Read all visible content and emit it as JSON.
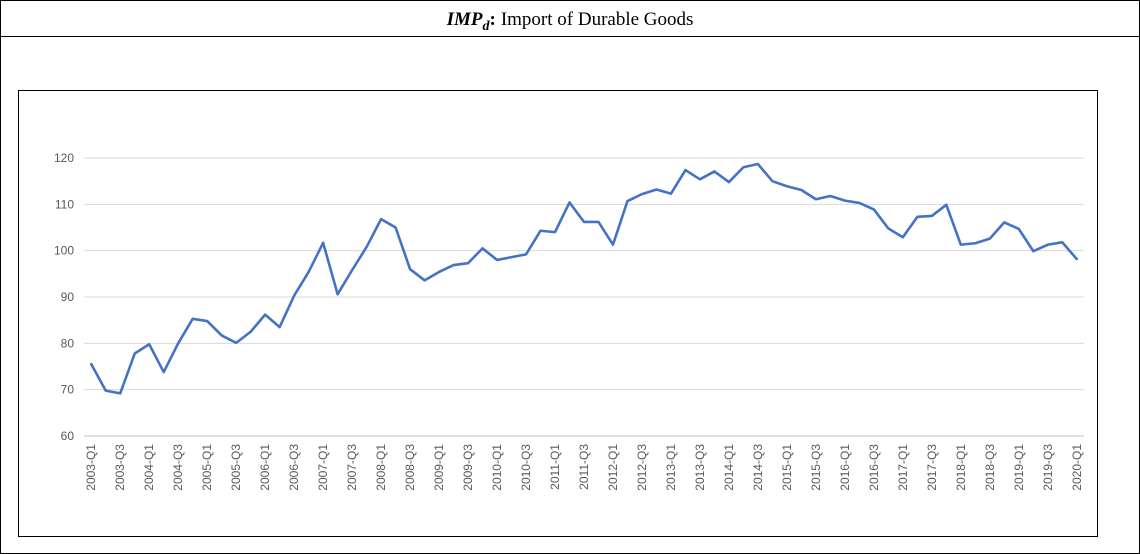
{
  "chart_data": {
    "type": "line",
    "title": {
      "symbol": "IMP",
      "subscript": "d",
      "separator": ":",
      "text": "Import of Durable Goods"
    },
    "categories": [
      "2003-Q1",
      null,
      "2003-Q3",
      null,
      "2004-Q1",
      null,
      "2004-Q3",
      null,
      "2005-Q1",
      null,
      "2005-Q3",
      null,
      "2006-Q1",
      null,
      "2006-Q3",
      null,
      "2007-Q1",
      null,
      "2007-Q3",
      null,
      "2008-Q1",
      null,
      "2008-Q3",
      null,
      "2009-Q1",
      null,
      "2009-Q3",
      null,
      "2010-Q1",
      null,
      "2010-Q3",
      null,
      "2011-Q1",
      null,
      "2011-Q3",
      null,
      "2012-Q1",
      null,
      "2012-Q3",
      null,
      "2013-Q1",
      null,
      "2013-Q3",
      null,
      "2014-Q1",
      null,
      "2014-Q3",
      null,
      "2015-Q1",
      null,
      "2015-Q3",
      null,
      "2016-Q1",
      null,
      "2016-Q3",
      null,
      "2017-Q1",
      null,
      "2017-Q3",
      null,
      "2018-Q1",
      null,
      "2018-Q3",
      null,
      "2019-Q1",
      null,
      "2019-Q3",
      null,
      "2020-Q1"
    ],
    "values": [
      75.5,
      69.8,
      69.2,
      77.8,
      79.8,
      73.8,
      80,
      85.3,
      84.8,
      81.7,
      80.1,
      82.5,
      86.2,
      83.5,
      90.3,
      95.4,
      101.7,
      90.6,
      95.8,
      100.8,
      106.8,
      105,
      96,
      93.6,
      95.4,
      96.9,
      97.3,
      100.5,
      98,
      98.6,
      99.2,
      104.3,
      104,
      110.4,
      106.2,
      106.2,
      101.3,
      110.7,
      112.2,
      113.2,
      112.3,
      117.4,
      115.4,
      117.1,
      114.8,
      118,
      118.7,
      115,
      113.9,
      113.1,
      111.1,
      111.8,
      110.8,
      110.3,
      108.9,
      104.8,
      102.9,
      107.3,
      107.5,
      109.9,
      101.3,
      101.6,
      102.6,
      106.1,
      104.7,
      99.9,
      101.3,
      101.8,
      98.2
    ],
    "color": "#4472c4",
    "ylim": [
      60,
      120
    ],
    "yticks": [
      60,
      70,
      80,
      90,
      100,
      110,
      120
    ],
    "grid": true
  }
}
